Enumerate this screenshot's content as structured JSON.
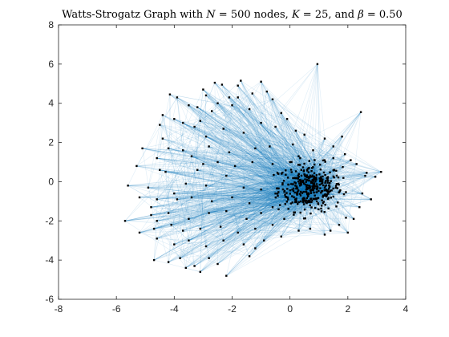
{
  "chart_data": {
    "type": "scatter",
    "title": "Watts-Strogatz Graph with N = 500 nodes, K = 25, and β = 0.50",
    "title_parts": {
      "lead": "Watts-Strogatz Graph with ",
      "n_symbol": "N",
      "n_rest": " = 500 nodes, ",
      "k_symbol": "K",
      "k_rest": " = 25, and ",
      "beta_symbol": "β",
      "beta_rest": " = 0.50"
    },
    "xlabel": "",
    "ylabel": "",
    "xlim": [
      -8,
      4
    ],
    "ylim": [
      -6,
      8
    ],
    "xticks": [
      -8,
      -6,
      -4,
      -2,
      0,
      2,
      4
    ],
    "yticks": [
      -6,
      -4,
      -2,
      0,
      2,
      4,
      6,
      8
    ],
    "grid": false,
    "legend": "none",
    "edge_color": "#0072BD",
    "node_color": "#000000",
    "cluster": {
      "description_center": [
        0.7,
        -0.3
      ],
      "extent_x": [
        -0.6,
        2.0
      ],
      "extent_y": [
        -2.0,
        1.4
      ]
    },
    "outer_nodes": [
      [
        0.95,
        6.0
      ],
      [
        2.45,
        3.55
      ],
      [
        -4.15,
        4.45
      ],
      [
        -3.9,
        4.3
      ],
      [
        -3.0,
        4.7
      ],
      [
        -2.6,
        5.05
      ],
      [
        -2.35,
        4.95
      ],
      [
        -1.8,
        4.9
      ],
      [
        -1.7,
        5.15
      ],
      [
        -1.0,
        5.1
      ],
      [
        -0.8,
        4.6
      ],
      [
        -0.6,
        4.2
      ],
      [
        -1.3,
        4.5
      ],
      [
        -2.1,
        4.3
      ],
      [
        -2.5,
        4.0
      ],
      [
        -3.2,
        3.8
      ],
      [
        -3.5,
        3.9
      ],
      [
        -4.4,
        3.4
      ],
      [
        -4.0,
        3.2
      ],
      [
        -3.7,
        3.0
      ],
      [
        -3.1,
        3.1
      ],
      [
        -2.7,
        3.6
      ],
      [
        -2.0,
        3.9
      ],
      [
        -1.4,
        3.7
      ],
      [
        -0.3,
        3.5
      ],
      [
        -0.1,
        3.2
      ],
      [
        -4.5,
        2.9
      ],
      [
        -3.3,
        2.8
      ],
      [
        -2.9,
        2.3
      ],
      [
        -2.3,
        2.7
      ],
      [
        -1.6,
        2.5
      ],
      [
        -1.0,
        3.0
      ],
      [
        -0.5,
        2.8
      ],
      [
        0.2,
        2.6
      ],
      [
        0.5,
        2.4
      ],
      [
        1.2,
        2.2
      ],
      [
        1.8,
        2.3
      ],
      [
        -5.1,
        1.7
      ],
      [
        -4.2,
        1.7
      ],
      [
        -3.7,
        1.6
      ],
      [
        -2.8,
        1.8
      ],
      [
        -2.1,
        1.5
      ],
      [
        -1.2,
        1.7
      ],
      [
        -0.7,
        1.8
      ],
      [
        0.1,
        1.9
      ],
      [
        0.8,
        1.6
      ],
      [
        1.5,
        1.8
      ],
      [
        2.1,
        1.1
      ],
      [
        -5.3,
        0.8
      ],
      [
        -4.6,
        1.2
      ],
      [
        -4.5,
        0.6
      ],
      [
        -3.4,
        1.3
      ],
      [
        -3.2,
        0.6
      ],
      [
        -2.5,
        1.0
      ],
      [
        -1.9,
        0.8
      ],
      [
        -1.3,
        1.0
      ],
      [
        -0.6,
        0.9
      ],
      [
        -5.6,
        -0.2
      ],
      [
        -4.9,
        -0.3
      ],
      [
        -4.3,
        0.5
      ],
      [
        -3.6,
        -0.1
      ],
      [
        -2.9,
        -0.2
      ],
      [
        -2.2,
        0.3
      ],
      [
        -1.6,
        -0.3
      ],
      [
        -1.0,
        -0.4
      ],
      [
        -5.2,
        -0.8
      ],
      [
        -4.6,
        -0.9
      ],
      [
        -4.0,
        -0.6
      ],
      [
        -3.4,
        -0.8
      ],
      [
        -2.7,
        -1.0
      ],
      [
        -2.0,
        -0.8
      ],
      [
        -1.4,
        -1.1
      ],
      [
        -5.7,
        -2.0
      ],
      [
        -4.8,
        -1.3
      ],
      [
        -4.8,
        -1.7
      ],
      [
        -4.2,
        -1.6
      ],
      [
        -3.5,
        -1.9
      ],
      [
        -2.8,
        -1.6
      ],
      [
        -2.2,
        -1.5
      ],
      [
        -1.5,
        -1.9
      ],
      [
        -1.0,
        -1.6
      ],
      [
        -5.2,
        -2.6
      ],
      [
        -4.7,
        -2.4
      ],
      [
        -4.1,
        -2.2
      ],
      [
        -3.7,
        -2.5
      ],
      [
        -3.1,
        -2.4
      ],
      [
        -2.4,
        -2.3
      ],
      [
        -1.8,
        -2.6
      ],
      [
        -1.2,
        -2.4
      ],
      [
        -0.6,
        -2.2
      ],
      [
        -4.6,
        -2.9
      ],
      [
        -4.0,
        -3.2
      ],
      [
        -3.5,
        -3.0
      ],
      [
        -2.9,
        -3.3
      ],
      [
        -2.3,
        -3.0
      ],
      [
        -1.6,
        -3.2
      ],
      [
        -0.9,
        -3.0
      ],
      [
        -4.7,
        -4.0
      ],
      [
        -4.2,
        -4.1
      ],
      [
        -3.8,
        -3.9
      ],
      [
        -3.3,
        -4.3
      ],
      [
        -2.8,
        -3.9
      ],
      [
        -2.2,
        -4.8
      ],
      [
        -1.4,
        -3.8
      ],
      [
        -3.6,
        -4.4
      ],
      [
        -3.1,
        -4.6
      ],
      [
        -2.5,
        -4.2
      ],
      [
        -1.2,
        -3.4
      ],
      [
        -0.3,
        -2.8
      ],
      [
        -0.6,
        -1.3
      ],
      [
        -0.4,
        0.4
      ],
      [
        2.2,
        -1.9
      ],
      [
        2.5,
        -0.6
      ],
      [
        2.6,
        0.3
      ],
      [
        2.8,
        -0.9
      ],
      [
        2.95,
        0.25
      ],
      [
        3.15,
        0.5
      ],
      [
        2.65,
        0.45
      ],
      [
        1.4,
        -2.5
      ],
      [
        1.7,
        -2.2
      ],
      [
        2.0,
        -2.6
      ],
      [
        0.3,
        -2.5
      ],
      [
        1.2,
        -2.7
      ],
      [
        0.7,
        -2.4
      ],
      [
        2.3,
        0.9
      ],
      [
        1.9,
        1.4
      ],
      [
        1.5,
        1.2
      ],
      [
        0.3,
        1.3
      ],
      [
        0.0,
        1.0
      ],
      [
        -0.2,
        -1.9
      ],
      [
        -0.5,
        -0.6
      ],
      [
        2.4,
        -1.3
      ],
      [
        -1.8,
        4.3
      ],
      [
        -2.9,
        4.4
      ],
      [
        -4.4,
        2.2
      ],
      [
        -4.6,
        -2.0
      ],
      [
        -3.9,
        -0.9
      ],
      [
        -3.0,
        0.9
      ]
    ]
  }
}
